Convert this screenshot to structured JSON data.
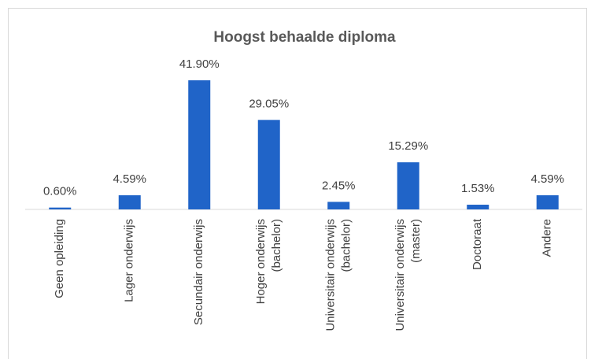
{
  "chart_data": {
    "type": "bar",
    "title": "Hoogst behaalde diploma",
    "categories": [
      "Geen opleiding",
      "Lager onderwijs",
      "Secundair onderwijs",
      "Hoger onderwijs (bachelor)",
      "Universitair onderwijs (bachelor)",
      "Universitair onderwijs (master)",
      "Doctoraat",
      "Andere"
    ],
    "values": [
      0.6,
      4.59,
      41.9,
      29.05,
      2.45,
      15.29,
      1.53,
      4.59
    ],
    "value_labels": [
      "0.60%",
      "4.59%",
      "41.90%",
      "29.05%",
      "2.45%",
      "15.29%",
      "1.53%",
      "4.59%"
    ],
    "color": "#2064c8"
  }
}
